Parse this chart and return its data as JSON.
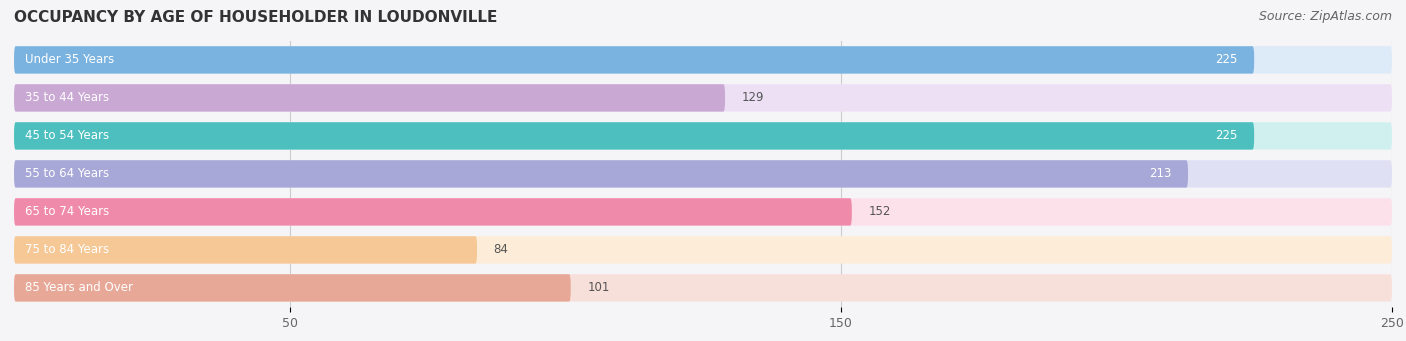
{
  "title": "OCCUPANCY BY AGE OF HOUSEHOLDER IN LOUDONVILLE",
  "source": "Source: ZipAtlas.com",
  "categories": [
    "Under 35 Years",
    "35 to 44 Years",
    "45 to 54 Years",
    "55 to 64 Years",
    "65 to 74 Years",
    "75 to 84 Years",
    "85 Years and Over"
  ],
  "values": [
    225,
    129,
    225,
    213,
    152,
    84,
    101
  ],
  "bar_colors": [
    "#7ab3e0",
    "#c9a8d4",
    "#4dbfbf",
    "#a8a8d8",
    "#f08aaa",
    "#f5c896",
    "#e8a898"
  ],
  "bar_bg_colors": [
    "#ddeaf8",
    "#ede0f5",
    "#d0f0f0",
    "#e0e0f5",
    "#fce0ea",
    "#fdecd8",
    "#f8e0da"
  ],
  "xlim": [
    0,
    250
  ],
  "xticks": [
    50,
    150,
    250
  ],
  "background_color": "#f0f0f5",
  "bar_bg_color": "#e8e8ee",
  "title_fontsize": 11,
  "source_fontsize": 9
}
